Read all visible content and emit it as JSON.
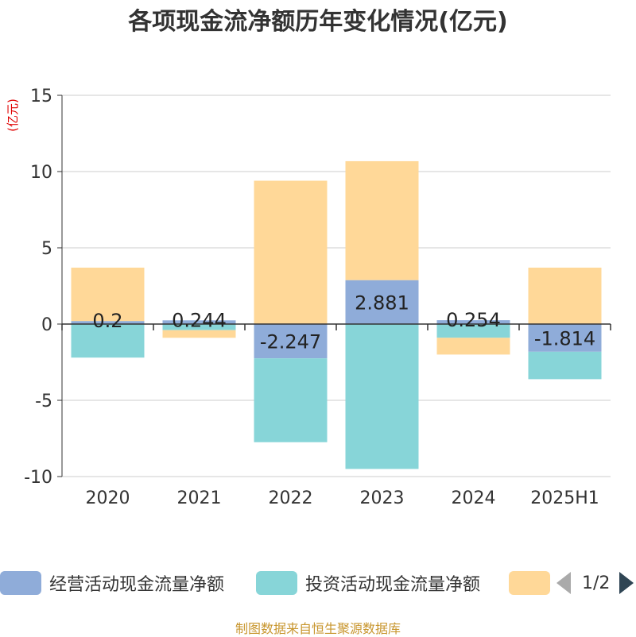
{
  "title": "各项现金流净额历年变化情况(亿元)",
  "unit_label": "(亿元)",
  "source": "制图数据来自恒生聚源数据库",
  "legend": {
    "items": [
      {
        "label": "经营活动现金流量净额",
        "color": "#8facd9"
      },
      {
        "label": "投资活动现金流量净额",
        "color": "#87d5d8"
      },
      {
        "label": "",
        "color": "#ffd898"
      }
    ],
    "page": "1/2"
  },
  "chart_data": {
    "type": "bar",
    "stacked": true,
    "categories": [
      "2020",
      "2021",
      "2022",
      "2023",
      "2024",
      "2025H1"
    ],
    "ylim": [
      -10,
      15
    ],
    "yticks": [
      15,
      10,
      5,
      0,
      -5,
      -10
    ],
    "grid": true,
    "series": [
      {
        "name": "经营活动现金流量净额",
        "color": "#8facd9",
        "values": [
          0.2,
          0.244,
          -2.247,
          2.881,
          0.254,
          -1.814
        ],
        "labels": [
          "0.2",
          "0.244",
          "-2.247",
          "2.881",
          "0.254",
          "-1.814"
        ]
      },
      {
        "name": "投资活动现金流量净额",
        "color": "#87d5d8",
        "values": [
          -2.2,
          -0.4,
          -5.5,
          -9.5,
          -0.9,
          -1.8
        ]
      },
      {
        "name": "",
        "color": "#ffd898",
        "values": [
          3.5,
          -0.5,
          9.4,
          7.8,
          -1.1,
          3.7
        ]
      }
    ]
  }
}
